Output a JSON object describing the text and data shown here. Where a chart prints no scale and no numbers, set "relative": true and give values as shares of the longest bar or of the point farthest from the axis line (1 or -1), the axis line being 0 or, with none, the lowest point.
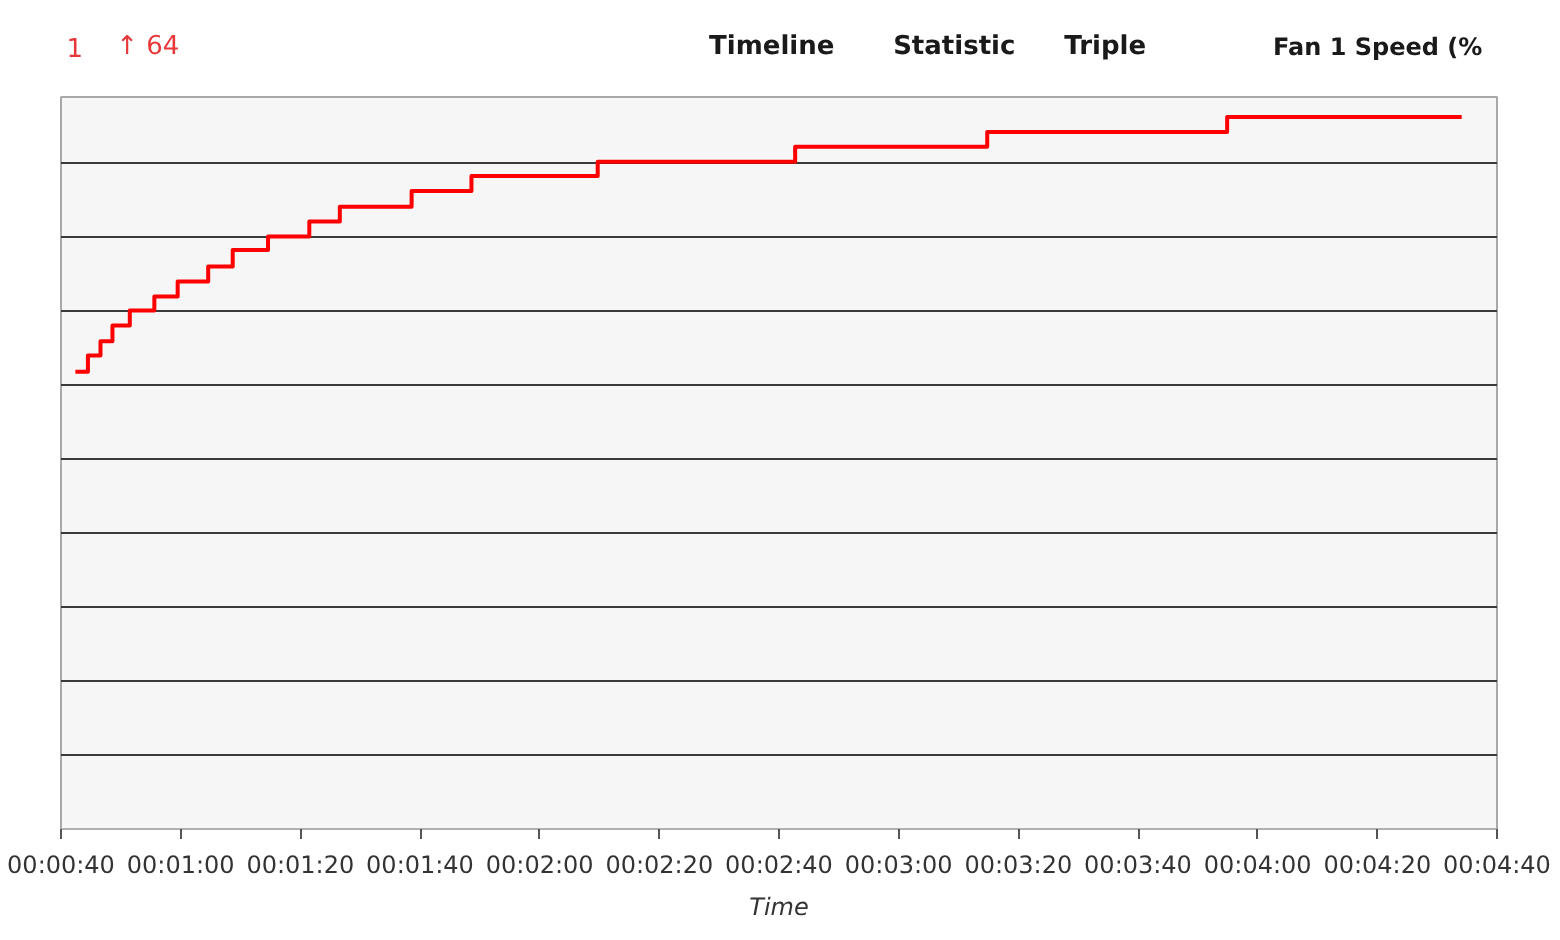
{
  "chart_data": {
    "type": "step",
    "title": "Fan 1 Speed (%",
    "xlabel": "Time",
    "annotations": [
      "1",
      "↑ 64",
      "Timeline",
      "Statistic",
      "Triple"
    ],
    "x": [
      42.4,
      44.5,
      46.6,
      48.6,
      51.5,
      55.6,
      59.5,
      64.6,
      68.7,
      74.6,
      81.5,
      86.6,
      98.6,
      108.6,
      129.7,
      162.7,
      194.8,
      234.9,
      274.1
    ],
    "series": [
      {
        "color": "#ff0000",
        "values": [
          0.642,
          0.665,
          0.685,
          0.707,
          0.728,
          0.748,
          0.769,
          0.79,
          0.813,
          0.832,
          0.853,
          0.874,
          0.896,
          0.917,
          0.937,
          0.958,
          0.979,
          1.0,
          1.0
        ]
      }
    ],
    "relative": true,
    "xlim": [
      40,
      280
    ],
    "xticks": [
      {
        "value": 40,
        "label": "00:00:40"
      },
      {
        "value": 60,
        "label": "00:01:00"
      },
      {
        "value": 80,
        "label": "00:01:20"
      },
      {
        "value": 100,
        "label": "00:01:40"
      },
      {
        "value": 120,
        "label": "00:02:00"
      },
      {
        "value": 140,
        "label": "00:02:20"
      },
      {
        "value": 160,
        "label": "00:02:40"
      },
      {
        "value": 180,
        "label": "00:03:00"
      },
      {
        "value": 200,
        "label": "00:03:20"
      },
      {
        "value": 220,
        "label": "00:03:40"
      },
      {
        "value": 240,
        "label": "00:04:00"
      },
      {
        "value": 260,
        "label": "00:04:20"
      },
      {
        "value": 280,
        "label": "00:04:40"
      }
    ],
    "grid": "y"
  }
}
